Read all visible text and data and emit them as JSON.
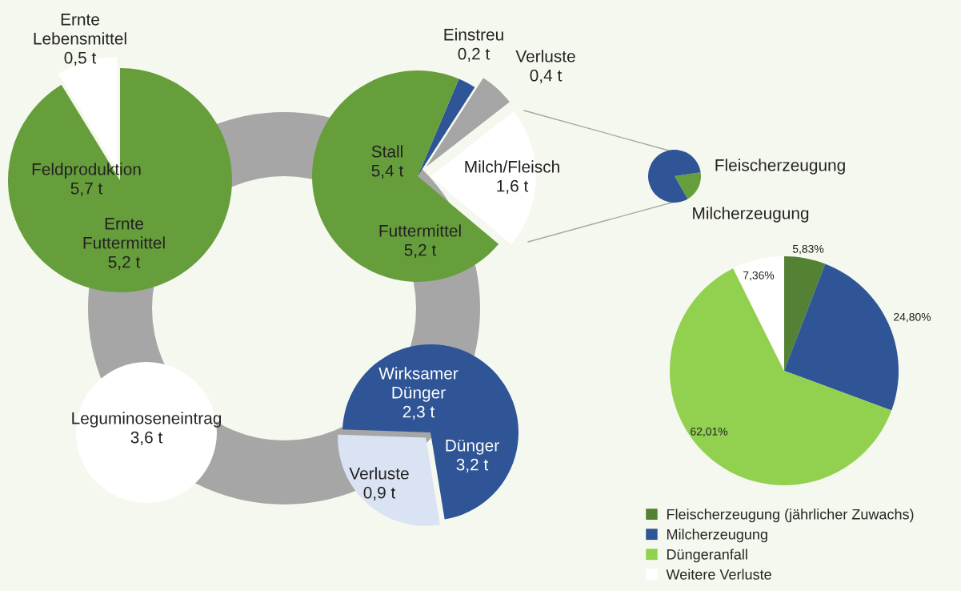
{
  "chart_data": [
    {
      "type": "pie",
      "categories": [
        "Ernte\nLebensmittel",
        "Ernte\nFuttermittel"
      ],
      "values": [
        0.5,
        5.2
      ],
      "colors": [
        "#ffffff",
        "#679e3c"
      ],
      "value_labels": [
        "0,5 t",
        "5,2 t"
      ],
      "annotations": [
        "Feldproduktion\n5,7 t"
      ]
    },
    {
      "type": "pie",
      "categories": [
        "Milch/Fleisch",
        "Verluste",
        "Einstreu",
        "Futtermittel"
      ],
      "values": [
        1.6,
        0.4,
        0.2,
        5.2
      ],
      "colors": [
        "#ffffff",
        "#a5a5a5",
        "#2f5597",
        "#679e3c"
      ],
      "value_labels": [
        "1,6 t",
        "0,4 t",
        "0,2 t",
        "5,2 t"
      ],
      "annotations": [
        "Stall\n5,4 t"
      ]
    },
    {
      "type": "pie",
      "categories": [
        "Fleischerzeugung",
        "Milcherzeugung"
      ],
      "values": [
        19,
        81
      ],
      "colors": [
        "#679e3c",
        "#2f5597"
      ]
    },
    {
      "type": "pie",
      "categories": [
        "Verluste",
        "Wirksamer\nDünger"
      ],
      "values": [
        0.9,
        2.3
      ],
      "colors": [
        "#dae3f3",
        "#2f5597"
      ],
      "value_labels": [
        "0,9 t",
        "2,3 t"
      ],
      "annotations": [
        "Dünger\n3,2 t"
      ]
    },
    {
      "type": "pie",
      "categories": [
        "Leguminoseneintrag"
      ],
      "values": [
        3.6
      ],
      "colors": [
        "#ffffff"
      ],
      "value_labels": [
        "3,6 t"
      ]
    },
    {
      "type": "pie",
      "categories": [
        "Fleischerzeugung (jährlicher Zuwachs)",
        "Milcherzeugung",
        "Düngeranfall",
        "Weitere Verluste"
      ],
      "values": [
        5.83,
        24.8,
        62.01,
        7.36
      ],
      "colors": [
        "#548235",
        "#2f5597",
        "#92d050",
        "#ffffff"
      ],
      "value_labels": [
        "5,83%",
        "24,80%",
        "62,01%",
        "7,36%"
      ],
      "legend": "bottom"
    }
  ]
}
